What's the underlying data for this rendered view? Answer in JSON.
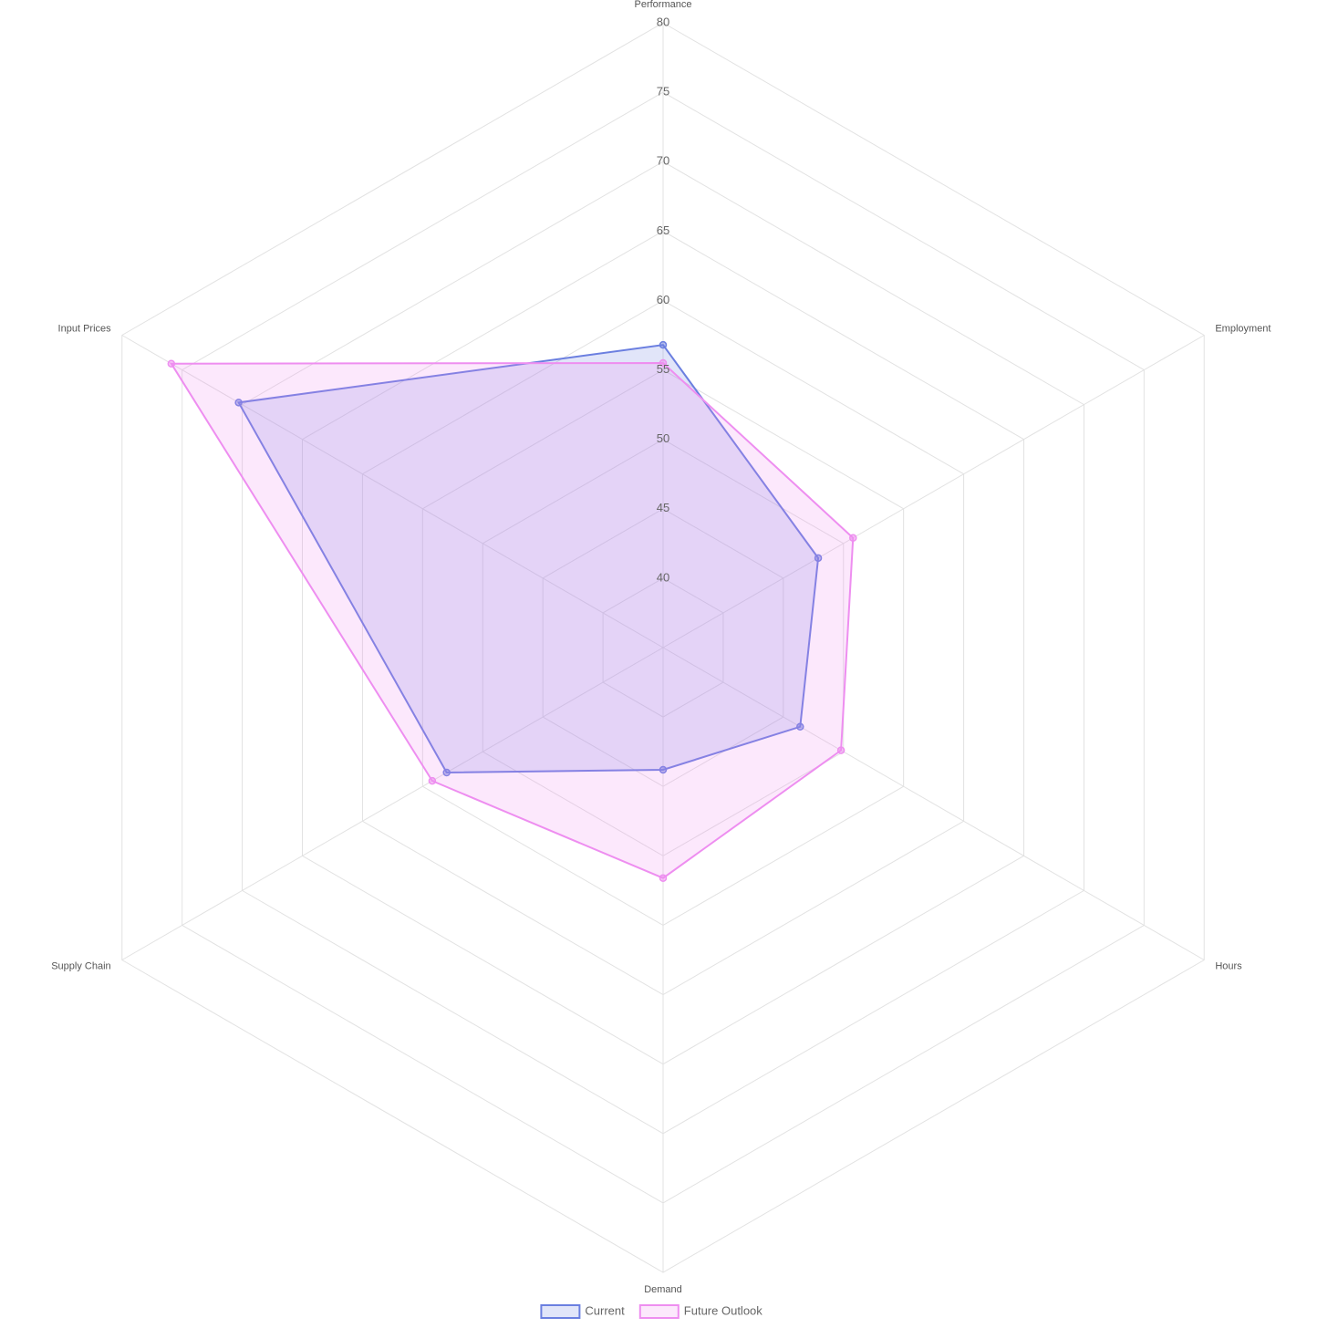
{
  "chart_data": {
    "type": "radar",
    "categories": [
      "Performance",
      "Employment",
      "Hours",
      "Demand",
      "Supply Chain",
      "Input Prices"
    ],
    "series": [
      {
        "name": "Current",
        "color": "#6b7fe0",
        "values": [
          56.8,
          47.9,
          46.4,
          43.8,
          53.0,
          70.3
        ]
      },
      {
        "name": "Future Outlook",
        "color": "#ee8ef0",
        "values": [
          55.5,
          50.8,
          49.8,
          51.6,
          54.2,
          75.9
        ]
      }
    ],
    "ylim": [
      35,
      80
    ],
    "yticks": [
      40,
      45,
      50,
      55,
      60,
      65,
      70,
      75,
      80
    ],
    "grid": true,
    "legend": "bottom"
  }
}
